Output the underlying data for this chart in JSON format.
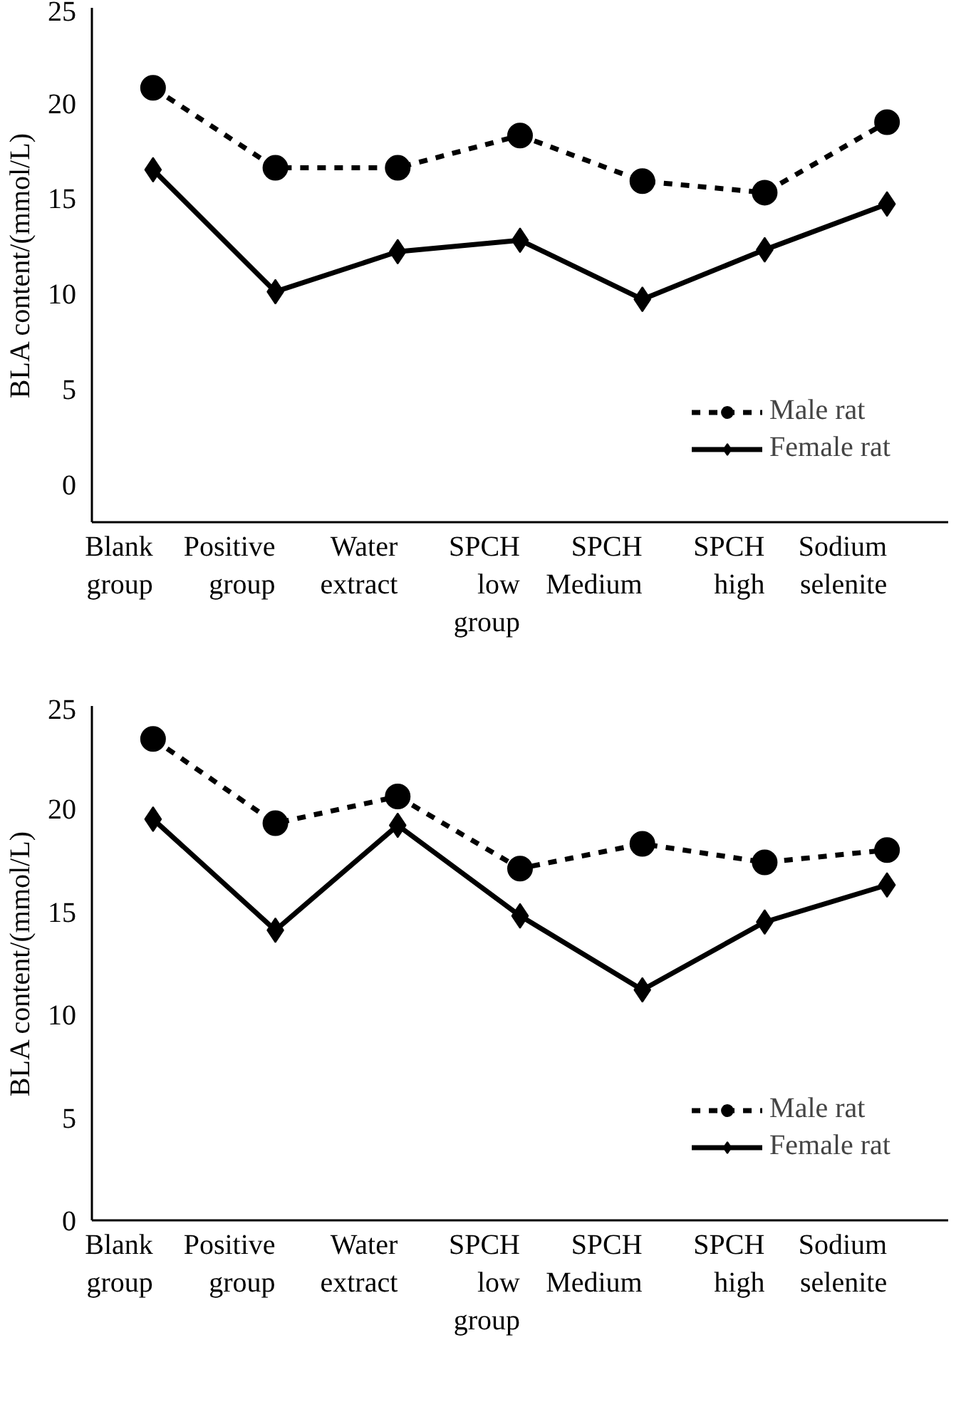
{
  "chart_data": [
    {
      "type": "line",
      "ylabel": "BLA content/(mmol/L)",
      "categories": [
        "Blank group",
        "Positive group",
        "Water extract",
        "SPCH low group",
        "SPCH Medium",
        "SPCH high",
        "Sodium selenite"
      ],
      "ylim": [
        -2,
        25
      ],
      "yticks": [
        0,
        5,
        10,
        15,
        20,
        25
      ],
      "grid": false,
      "legend": "bottom right",
      "series": [
        {
          "name": "Male rat",
          "color": "#000000",
          "marker": "circle",
          "line_style": "dashed",
          "values": [
            20.8,
            16.6,
            16.6,
            18.3,
            15.9,
            15.3,
            19.0
          ]
        },
        {
          "name": "Female rat",
          "color": "#000000",
          "marker": "diamond",
          "line_style": "solid",
          "values": [
            16.5,
            10.1,
            12.2,
            12.8,
            9.7,
            12.3,
            14.7
          ]
        }
      ]
    },
    {
      "type": "line",
      "ylabel": "BLA content/(mmol/L)",
      "categories": [
        "Blank group",
        "Positive group",
        "Water extract",
        "SPCH low group",
        "SPCH Medium",
        "SPCH high",
        "Sodium selenite"
      ],
      "ylim": [
        0,
        25
      ],
      "yticks": [
        0,
        5,
        10,
        15,
        20,
        25
      ],
      "grid": false,
      "legend": "bottom right",
      "series": [
        {
          "name": "Male rat",
          "color": "#000000",
          "marker": "circle",
          "line_style": "dashed",
          "values": [
            23.4,
            19.3,
            20.6,
            17.1,
            18.3,
            17.4,
            18.0
          ]
        },
        {
          "name": "Female rat",
          "color": "#000000",
          "marker": "diamond",
          "line_style": "solid",
          "values": [
            19.5,
            14.1,
            19.2,
            14.8,
            11.2,
            14.5,
            16.3
          ]
        }
      ]
    }
  ]
}
